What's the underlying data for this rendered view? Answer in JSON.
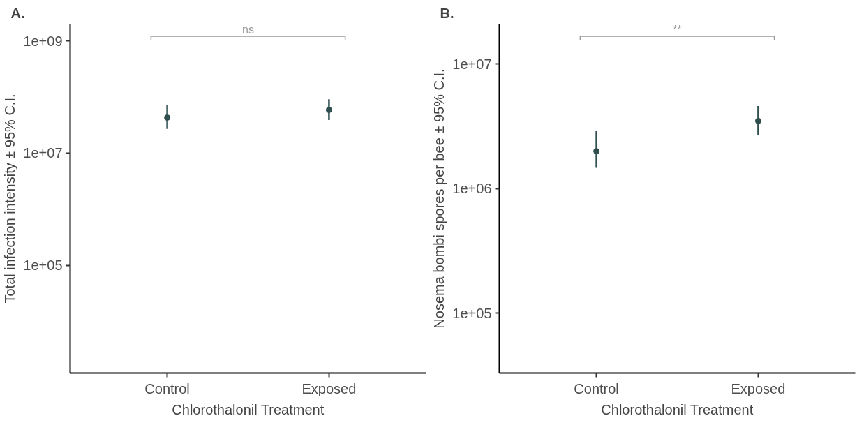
{
  "chart_data": [
    {
      "type": "scatter",
      "title": "A.",
      "xlabel": "Chlorothalonil Treatment",
      "ylabel": "Total infection intensity ± 95% C.I.",
      "categories": [
        "Control",
        "Exposed"
      ],
      "log": "y",
      "marker": "circle",
      "grid": false,
      "series": [
        {
          "color": "#2f4f4f",
          "values": [
            43000000,
            59000000
          ],
          "errors": [
            [
              27000000,
              73000000
            ],
            [
              39000000,
              91000000
            ]
          ]
        }
      ],
      "ylim": [
        1200,
        2000000000
      ],
      "yticks": [
        {
          "value": 100000,
          "label": "1e+05"
        },
        {
          "value": 10000000,
          "label": "1e+07"
        },
        {
          "value": 1000000000,
          "label": "1e+09"
        }
      ],
      "annotations": [
        "ns"
      ]
    },
    {
      "type": "scatter",
      "title": "B.",
      "xlabel": "Chlorothalonil Treatment",
      "ylabel": "Nosema bombi spores per bee ± 95% C.I.",
      "categories": [
        "Control",
        "Exposed"
      ],
      "log": "y",
      "marker": "circle",
      "grid": false,
      "series": [
        {
          "color": "#2f4f4f",
          "values": [
            2000000,
            3500000
          ],
          "errors": [
            [
              1470000,
              2900000
            ],
            [
              2700000,
              4600000
            ]
          ]
        }
      ],
      "ylim": [
        33000,
        21000000
      ],
      "yticks": [
        {
          "value": 100000,
          "label": "1e+05"
        },
        {
          "value": 1000000,
          "label": "1e+06"
        },
        {
          "value": 10000000,
          "label": "1e+07"
        }
      ],
      "annotations": [
        "**"
      ]
    }
  ]
}
